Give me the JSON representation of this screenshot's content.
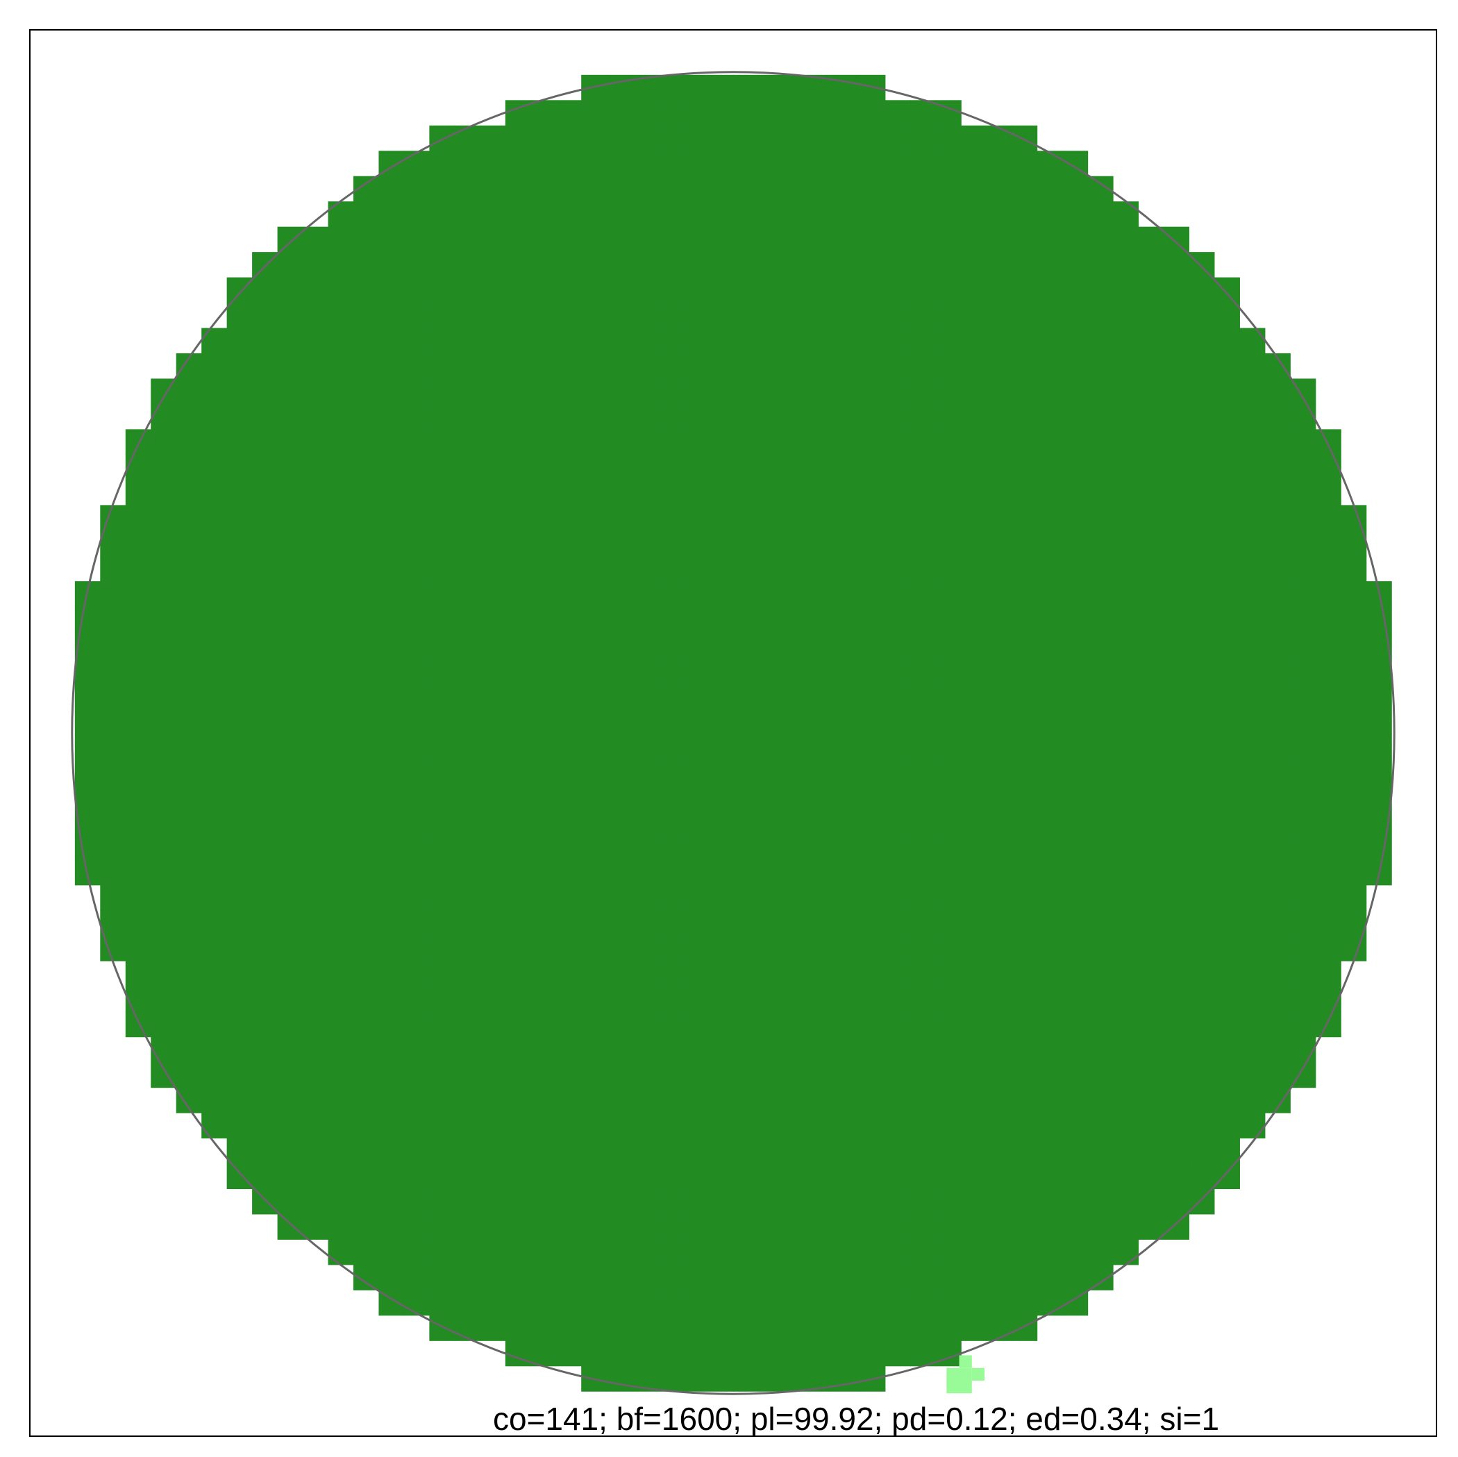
{
  "chart_data": {
    "type": "heatmap",
    "title": "",
    "xlabel": "",
    "ylabel": "",
    "caption": "co=141; bf=1600; pl=99.92; pd=0.12; ed=0.34; si=1",
    "grid": false,
    "legend": "none",
    "circle": {
      "center_ux": 0.5,
      "center_uy": 0.5,
      "radius_u": 0.47,
      "outline_color": "#666666"
    },
    "cell_size_u": 0.018,
    "fill_color": "#228B22",
    "highlight_color": "#98FB98",
    "highlight_cells": [
      {
        "ux": 0.6517,
        "uy": 0.9515,
        "wu": 0.018,
        "hu": 0.018
      },
      {
        "ux": 0.6697,
        "uy": 0.9515,
        "wu": 0.009,
        "hu": 0.009
      },
      {
        "ux": 0.6607,
        "uy": 0.9425,
        "wu": 0.009,
        "hu": 0.009
      }
    ],
    "frame_color": "#000000",
    "background": "#FFFFFF"
  }
}
